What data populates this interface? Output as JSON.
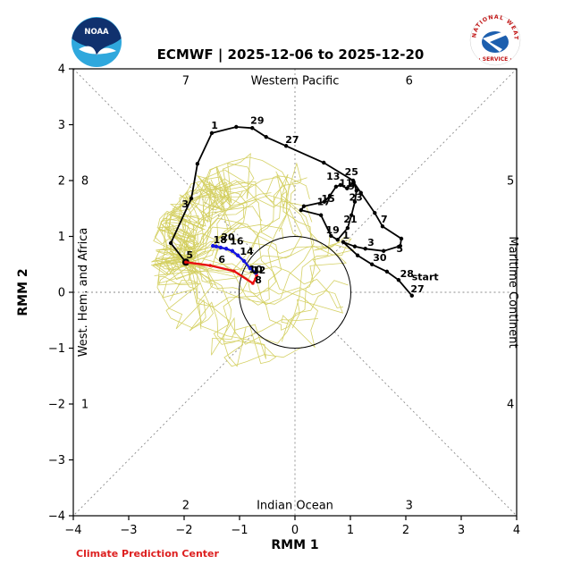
{
  "header": {
    "title": "ECMWF | 2025-12-06 to 2025-12-20",
    "noaa_logo_text": "NOAA",
    "nws_logo_top_text": "NATIONAL WEATHER",
    "nws_logo_bottom_text": "· SERVICE ·"
  },
  "footer": {
    "credit": "Climate Prediction Center",
    "credit_color": "#dd1f1f"
  },
  "chart_data": {
    "type": "line",
    "title": "ECMWF | 2025-12-06 to 2025-12-20",
    "xlabel": "RMM 1",
    "ylabel": "RMM 2",
    "xlim": [
      -4,
      4
    ],
    "ylim": [
      -4,
      4
    ],
    "xtick_labels": [
      "−4",
      "−3",
      "−2",
      "−1",
      "0",
      "1",
      "2",
      "3",
      "4"
    ],
    "xtick_values": [
      -4,
      -3,
      -2,
      -1,
      0,
      1,
      2,
      3,
      4
    ],
    "ytick_labels": [
      "−4",
      "−3",
      "−2",
      "−1",
      "0",
      "1",
      "2",
      "3",
      "4"
    ],
    "ytick_values": [
      -4,
      -3,
      -2,
      -1,
      0,
      1,
      2,
      3,
      4
    ],
    "unit_circle_radius": 1,
    "grid": "dashed phase-space guides outside unit circle",
    "legend_position": "none",
    "phase_labels": [
      {
        "text": "1",
        "x": -3.79,
        "y": -2.0,
        "rotate": 0
      },
      {
        "text": "2",
        "x": -1.97,
        "y": -3.81,
        "rotate": 0
      },
      {
        "text": "3",
        "x": 2.06,
        "y": -3.81,
        "rotate": 0
      },
      {
        "text": "4",
        "x": 3.89,
        "y": -2.0,
        "rotate": 0
      },
      {
        "text": "5",
        "x": 3.89,
        "y": 2.0,
        "rotate": 0
      },
      {
        "text": "6",
        "x": 2.06,
        "y": 3.79,
        "rotate": 0
      },
      {
        "text": "7",
        "x": -1.97,
        "y": 3.79,
        "rotate": 0
      },
      {
        "text": "8",
        "x": -3.79,
        "y": 2.0,
        "rotate": 0
      }
    ],
    "region_labels": [
      {
        "text": "Western Pacific",
        "x": 0,
        "y": 3.79,
        "rotate": 0
      },
      {
        "text": "Indian Ocean",
        "x": 0,
        "y": -3.81,
        "rotate": 0
      },
      {
        "text": "West. Hem. and Africa",
        "x": -3.76,
        "y": 0,
        "rotate": -90
      },
      {
        "text": "Maritime Continent",
        "x": 3.87,
        "y": 0,
        "rotate": 90
      }
    ],
    "observed": {
      "name": "Observed RMM (last 40 days)",
      "color": "#000000",
      "points": [
        [
          2.11,
          -0.06
        ],
        [
          1.87,
          0.22
        ],
        [
          1.66,
          0.37
        ],
        [
          1.39,
          0.5
        ],
        [
          1.13,
          0.66
        ],
        [
          0.87,
          0.9
        ],
        [
          1.08,
          0.82
        ],
        [
          1.27,
          0.78
        ],
        [
          1.6,
          0.74
        ],
        [
          1.9,
          0.83
        ],
        [
          1.92,
          0.96
        ],
        [
          1.58,
          1.18
        ],
        [
          1.44,
          1.42
        ],
        [
          1.19,
          1.78
        ],
        [
          1.06,
          1.97
        ],
        [
          0.94,
          1.86
        ],
        [
          0.82,
          1.92
        ],
        [
          0.74,
          1.89
        ],
        [
          0.63,
          1.73
        ],
        [
          0.53,
          1.62
        ],
        [
          0.16,
          1.54
        ],
        [
          0.11,
          1.47
        ],
        [
          0.47,
          1.38
        ],
        [
          0.65,
          1.01
        ],
        [
          0.77,
          0.94
        ],
        [
          0.95,
          1.15
        ],
        [
          1.02,
          1.38
        ],
        [
          1.08,
          1.62
        ],
        [
          1.11,
          1.82
        ],
        [
          1.05,
          2.0
        ],
        [
          0.52,
          2.32
        ],
        [
          -0.16,
          2.62
        ],
        [
          -0.52,
          2.78
        ],
        [
          -0.77,
          2.94
        ],
        [
          -1.06,
          2.96
        ],
        [
          -1.5,
          2.85
        ],
        [
          -1.76,
          2.3
        ],
        [
          -1.87,
          1.68
        ],
        [
          -2.24,
          0.88
        ],
        [
          -1.97,
          0.54
        ]
      ],
      "end_marker_index": 39
    },
    "forecast_week1": {
      "name": "Ensemble mean forecast days 1-7",
      "color": "#e81010",
      "points": [
        [
          -1.97,
          0.54
        ],
        [
          -1.53,
          0.48
        ],
        [
          -1.1,
          0.38
        ],
        [
          -0.76,
          0.16
        ],
        [
          -0.71,
          0.24
        ],
        [
          -0.69,
          0.3
        ],
        [
          -0.7,
          0.34
        ],
        [
          -0.71,
          0.35
        ]
      ]
    },
    "forecast_week2": {
      "name": "Ensemble mean forecast days 8-15",
      "color": "#1616e0",
      "points": [
        [
          -0.71,
          0.35
        ],
        [
          -0.81,
          0.43
        ],
        [
          -0.92,
          0.56
        ],
        [
          -1.03,
          0.66
        ],
        [
          -1.13,
          0.74
        ],
        [
          -1.24,
          0.78
        ],
        [
          -1.34,
          0.8
        ],
        [
          -1.42,
          0.82
        ],
        [
          -1.48,
          0.83
        ]
      ]
    },
    "date_labels": [
      {
        "text": "start",
        "x": 2.35,
        "y": 0.22
      },
      {
        "text": "27",
        "x": 2.21,
        "y": 0.0
      },
      {
        "text": "28",
        "x": 2.02,
        "y": 0.27
      },
      {
        "text": "30",
        "x": 1.53,
        "y": 0.56
      },
      {
        "text": "1",
        "x": 0.92,
        "y": 0.96
      },
      {
        "text": "3",
        "x": 1.37,
        "y": 0.83
      },
      {
        "text": "5",
        "x": 1.89,
        "y": 0.72
      },
      {
        "text": "7",
        "x": 1.61,
        "y": 1.25
      },
      {
        "text": "9",
        "x": 1.02,
        "y": 1.84
      },
      {
        "text": "11",
        "x": 0.92,
        "y": 1.9
      },
      {
        "text": "13",
        "x": 0.69,
        "y": 2.02
      },
      {
        "text": "15",
        "x": 0.6,
        "y": 1.62
      },
      {
        "text": "17",
        "x": 0.52,
        "y": 1.56
      },
      {
        "text": "19",
        "x": 0.68,
        "y": 1.06
      },
      {
        "text": "21",
        "x": 1.0,
        "y": 1.25
      },
      {
        "text": "23",
        "x": 1.1,
        "y": 1.64
      },
      {
        "text": "25",
        "x": 1.02,
        "y": 2.1
      },
      {
        "text": "27",
        "x": -0.05,
        "y": 2.67
      },
      {
        "text": "29",
        "x": -0.68,
        "y": 3.02
      },
      {
        "text": "1",
        "x": -1.45,
        "y": 2.93
      },
      {
        "text": "3",
        "x": -1.98,
        "y": 1.52
      },
      {
        "text": "5",
        "x": -1.9,
        "y": 0.61
      },
      {
        "text": "6",
        "x": -1.32,
        "y": 0.53
      },
      {
        "text": "8",
        "x": -0.66,
        "y": 0.16
      },
      {
        "text": "10",
        "x": -0.71,
        "y": 0.35
      },
      {
        "text": "12",
        "x": -0.65,
        "y": 0.34
      },
      {
        "text": "14",
        "x": -0.87,
        "y": 0.67
      },
      {
        "text": "16",
        "x": -1.05,
        "y": 0.86
      },
      {
        "text": "18",
        "x": -1.35,
        "y": 0.88
      },
      {
        "text": "20",
        "x": -1.21,
        "y": 0.93
      }
    ],
    "ensemble": {
      "name": "ECMWF ensemble members",
      "color": "#d3cf5e",
      "member_count": 45,
      "steps": 15,
      "seed": 7,
      "start": [
        -1.97,
        0.54
      ],
      "spread_center": [
        -0.75,
        0.55
      ],
      "spread_rx": 1.85,
      "spread_ry": 1.95
    }
  }
}
